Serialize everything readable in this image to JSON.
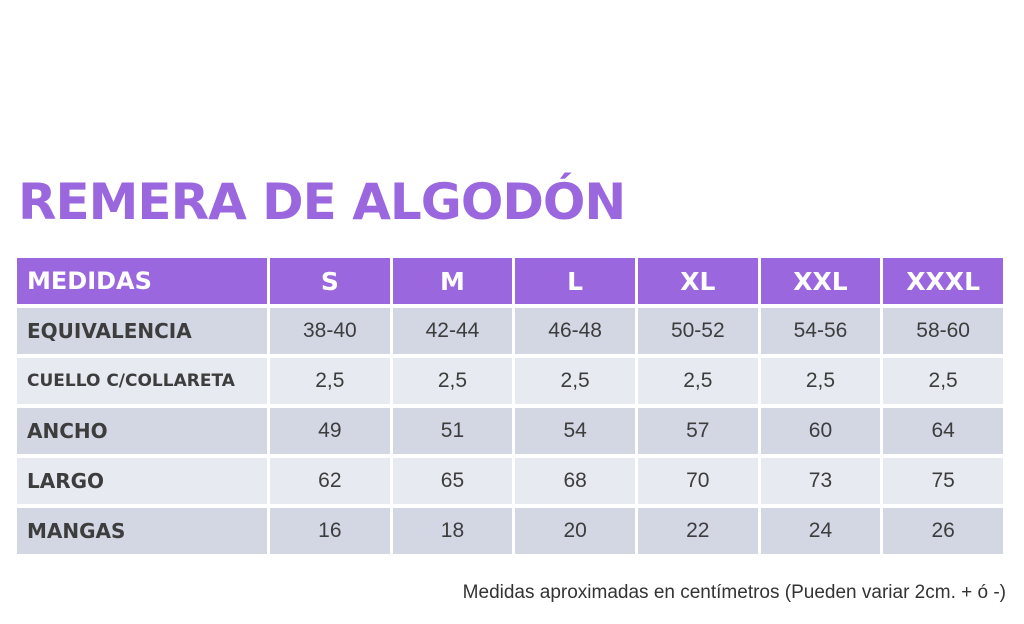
{
  "title": "REMERA DE ALGODÓN",
  "table": {
    "header": {
      "label": "MEDIDAS",
      "sizes": [
        "S",
        "M",
        "L",
        "XL",
        "XXL",
        "XXXL"
      ]
    },
    "rows": [
      {
        "label": "EQUIVALENCIA",
        "values": [
          "38-40",
          "42-44",
          "46-48",
          "50-52",
          "54-56",
          "58-60"
        ]
      },
      {
        "label": "CUELLO C/COLLARETA",
        "values": [
          "2,5",
          "2,5",
          "2,5",
          "2,5",
          "2,5",
          "2,5"
        ]
      },
      {
        "label": "ANCHO",
        "values": [
          "49",
          "51",
          "54",
          "57",
          "60",
          "64"
        ]
      },
      {
        "label": "LARGO",
        "values": [
          "62",
          "65",
          "68",
          "70",
          "73",
          "75"
        ]
      },
      {
        "label": "MANGAS",
        "values": [
          "16",
          "18",
          "20",
          "22",
          "24",
          "26"
        ]
      }
    ]
  },
  "note": "Medidas aproximadas en centímetros (Pueden variar 2cm. + ó -)",
  "colors": {
    "accent": "#9a67de",
    "row_shade": "#d3d7e4",
    "row_light": "#e8eaf1"
  }
}
